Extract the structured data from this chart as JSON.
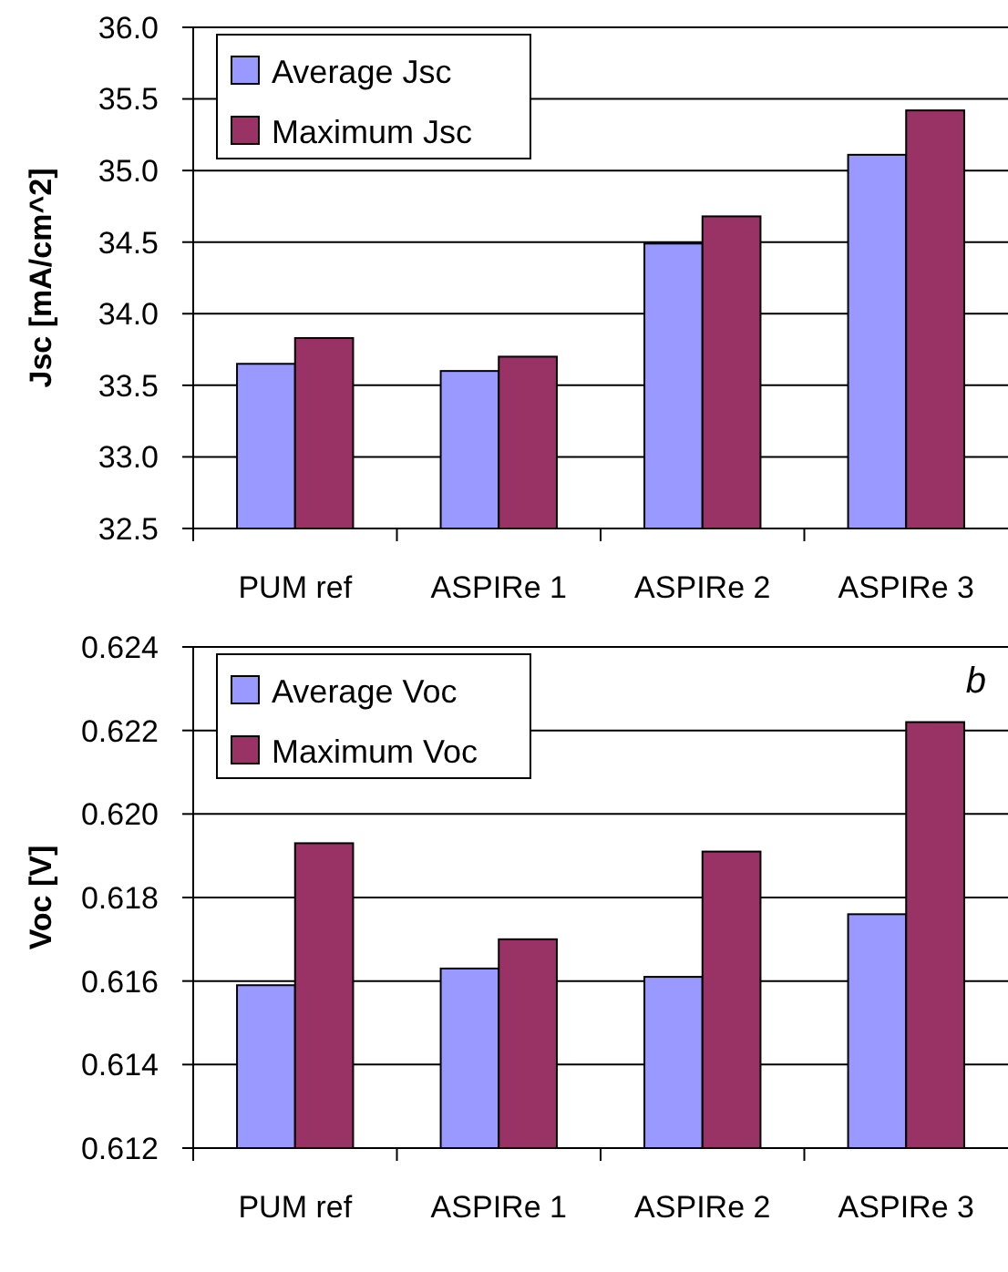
{
  "chart_data": [
    {
      "type": "bar",
      "ylabel": "Jsc [mA/cm^2]",
      "categories": [
        "PUM ref",
        "ASPIRe 1",
        "ASPIRe 2",
        "ASPIRe 3"
      ],
      "series": [
        {
          "name": "Average Jsc",
          "color": "#9999ff",
          "values": [
            33.65,
            33.6,
            34.49,
            35.11
          ]
        },
        {
          "name": "Maximum Jsc",
          "color": "#993366",
          "values": [
            33.83,
            33.7,
            34.68,
            35.42
          ]
        }
      ],
      "ylim": [
        32.5,
        36.0
      ],
      "yticks": [
        {
          "value": 32.5,
          "label": "32.5"
        },
        {
          "value": 33,
          "label": "33.0"
        },
        {
          "value": 33.5,
          "label": "33.5"
        },
        {
          "value": 34,
          "label": "34.0"
        },
        {
          "value": 34.5,
          "label": "34.5"
        },
        {
          "value": 35,
          "label": "35.0"
        },
        {
          "value": 35.5,
          "label": "35.5"
        },
        {
          "value": 36,
          "label": "36.0"
        }
      ],
      "grid": "y",
      "legend": "top left"
    },
    {
      "type": "bar",
      "ylabel": "Voc [V]",
      "annotations": [
        "b"
      ],
      "categories": [
        "PUM ref",
        "ASPIRe 1",
        "ASPIRe 2",
        "ASPIRe 3"
      ],
      "series": [
        {
          "name": "Average Voc",
          "color": "#9999ff",
          "values": [
            0.6159,
            0.6163,
            0.6161,
            0.6176
          ]
        },
        {
          "name": "Maximum Voc",
          "color": "#993366",
          "values": [
            0.6193,
            0.617,
            0.6191,
            0.6222
          ]
        }
      ],
      "ylim": [
        0.612,
        0.624
      ],
      "yticks": [
        0.612,
        0.614,
        0.616,
        0.618,
        {
          "value": 0.62,
          "label": "0.620"
        },
        0.622,
        0.624
      ],
      "grid": "y",
      "legend": "top left"
    }
  ]
}
